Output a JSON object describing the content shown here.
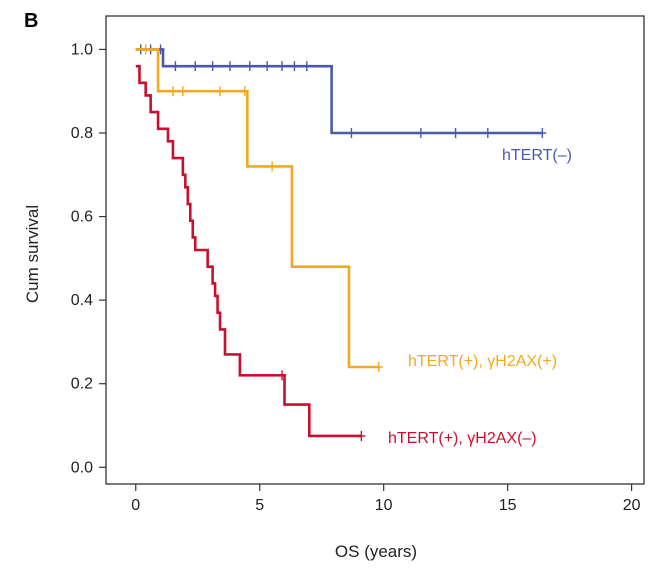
{
  "figure": {
    "panel_label": "B"
  },
  "chart_data": {
    "type": "line",
    "step": true,
    "xlabel": "OS (years)",
    "ylabel": "Cum survival",
    "xlim": [
      -1.2,
      20.5
    ],
    "ylim": [
      -0.04,
      1.08
    ],
    "xticks": [
      0,
      5,
      10,
      15,
      20
    ],
    "yticks": [
      0.0,
      0.2,
      0.4,
      0.6,
      0.8,
      1.0
    ],
    "yticks_labels": [
      "0.0",
      "0.2",
      "0.4",
      "0.6",
      "0.8",
      "1.0"
    ],
    "grid": false,
    "series": [
      {
        "name": "hTERT(–)",
        "color": "#4a5aa8",
        "steps": [
          [
            0,
            1.0
          ],
          [
            1.1,
            0.96
          ],
          [
            7.9,
            0.8
          ],
          [
            16.4,
            0.8
          ]
        ],
        "censored": [
          [
            0.2,
            1.0
          ],
          [
            0.6,
            1.0
          ],
          [
            1.0,
            1.0
          ],
          [
            1.6,
            0.96
          ],
          [
            2.4,
            0.96
          ],
          [
            3.1,
            0.96
          ],
          [
            3.8,
            0.96
          ],
          [
            4.6,
            0.96
          ],
          [
            5.3,
            0.96
          ],
          [
            5.9,
            0.96
          ],
          [
            6.4,
            0.96
          ],
          [
            6.9,
            0.96
          ],
          [
            8.7,
            0.8
          ],
          [
            11.5,
            0.8
          ],
          [
            12.9,
            0.8
          ],
          [
            14.2,
            0.8
          ],
          [
            16.4,
            0.8
          ]
        ]
      },
      {
        "name": "hTERT(+), γH2AX(+)",
        "color": "#f0aa1e",
        "steps": [
          [
            0,
            1.0
          ],
          [
            0.9,
            0.9
          ],
          [
            4.5,
            0.72
          ],
          [
            6.3,
            0.48
          ],
          [
            8.6,
            0.24
          ],
          [
            9.8,
            0.24
          ]
        ],
        "censored": [
          [
            0.4,
            1.0
          ],
          [
            1.5,
            0.9
          ],
          [
            1.9,
            0.9
          ],
          [
            3.4,
            0.9
          ],
          [
            4.4,
            0.9
          ],
          [
            5.5,
            0.72
          ],
          [
            9.8,
            0.24
          ]
        ]
      },
      {
        "name": "hTERT(+), γH2AX(–)",
        "color": "#c8102e",
        "steps": [
          [
            0,
            0.96
          ],
          [
            0.15,
            0.92
          ],
          [
            0.4,
            0.89
          ],
          [
            0.6,
            0.85
          ],
          [
            0.9,
            0.81
          ],
          [
            1.3,
            0.78
          ],
          [
            1.5,
            0.74
          ],
          [
            1.9,
            0.7
          ],
          [
            2.0,
            0.67
          ],
          [
            2.1,
            0.63
          ],
          [
            2.2,
            0.59
          ],
          [
            2.3,
            0.55
          ],
          [
            2.4,
            0.52
          ],
          [
            2.9,
            0.48
          ],
          [
            3.1,
            0.44
          ],
          [
            3.2,
            0.41
          ],
          [
            3.3,
            0.37
          ],
          [
            3.4,
            0.33
          ],
          [
            3.6,
            0.27
          ],
          [
            4.2,
            0.22
          ],
          [
            6.0,
            0.15
          ],
          [
            7.0,
            0.075
          ],
          [
            9.1,
            0.075
          ]
        ],
        "censored": [
          [
            5.9,
            0.22
          ],
          [
            9.1,
            0.075
          ]
        ]
      }
    ]
  }
}
